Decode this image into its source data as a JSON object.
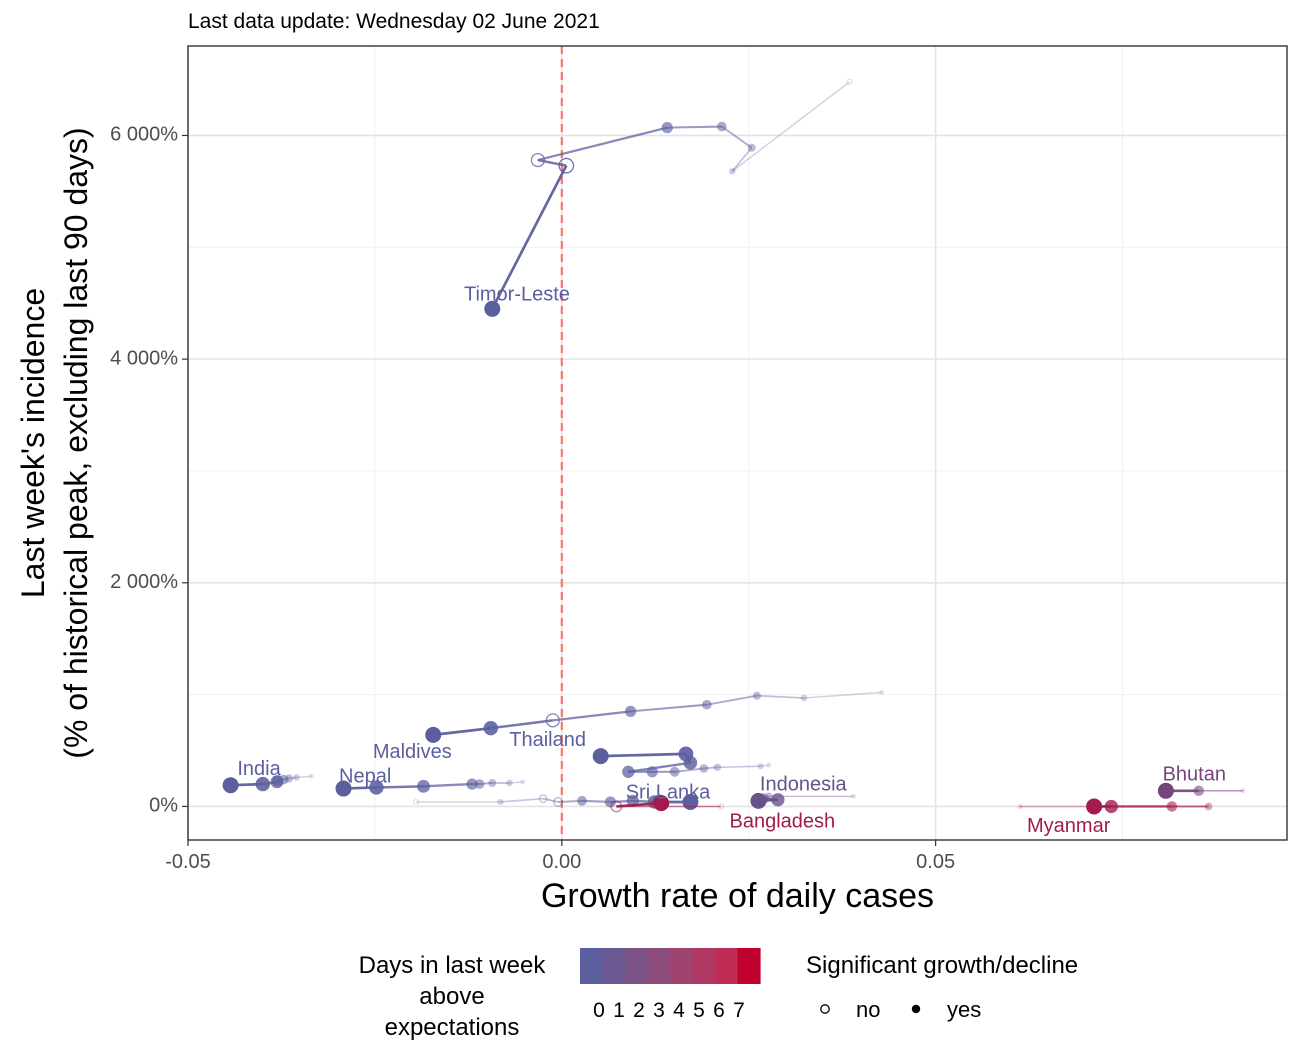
{
  "subtitle": "Last data update: Wednesday 02 June 2021",
  "chart_data": {
    "type": "scatter",
    "xlabel": "Growth rate of daily cases",
    "ylabel_lines": [
      "Last week's incidence",
      "(% of historical peak, excluding last 90 days)"
    ],
    "xlim": [
      -0.05,
      0.097
    ],
    "ylim": [
      -300,
      6800
    ],
    "x_ticks": [
      -0.05,
      0.0,
      0.05
    ],
    "x_tick_labels": [
      "-0.05",
      "0.00",
      "0.05"
    ],
    "y_ticks": [
      0,
      2000,
      4000,
      6000
    ],
    "y_tick_labels": [
      "0%",
      "2 000%",
      "4 000%",
      "6 000%"
    ],
    "minor_x": [
      -0.025,
      0.025,
      0.075
    ],
    "minor_y": [
      1000,
      3000,
      5000
    ],
    "grid": true,
    "reference_line": {
      "x": 0.0,
      "color": "#f8766d",
      "style": "dashed"
    },
    "color_low": "#5b5f9e",
    "color_high": "#c0002e",
    "series": [
      {
        "name": "Timor-Leste",
        "days": 0,
        "label": {
          "x": -0.006,
          "y": 4570
        },
        "points": [
          {
            "x": 0.0385,
            "y": 6480,
            "sig": false
          },
          {
            "x": 0.0228,
            "y": 5680,
            "sig": true
          },
          {
            "x": 0.0254,
            "y": 5890,
            "sig": true
          },
          {
            "x": 0.0214,
            "y": 6080,
            "sig": true
          },
          {
            "x": 0.0141,
            "y": 6070,
            "sig": true
          },
          {
            "x": -0.0032,
            "y": 5780,
            "sig": false
          },
          {
            "x": 0.0006,
            "y": 5730,
            "sig": false
          },
          {
            "x": -0.0093,
            "y": 4450,
            "sig": true
          }
        ]
      },
      {
        "name": "Maldives",
        "days": 0,
        "label": {
          "x": -0.02,
          "y": 480
        },
        "points": [
          {
            "x": 0.0428,
            "y": 1020,
            "sig": true
          },
          {
            "x": 0.0324,
            "y": 970,
            "sig": true
          },
          {
            "x": 0.0261,
            "y": 990,
            "sig": true
          },
          {
            "x": 0.0194,
            "y": 910,
            "sig": true
          },
          {
            "x": 0.0092,
            "y": 850,
            "sig": true
          },
          {
            "x": -0.0012,
            "y": 770,
            "sig": false
          },
          {
            "x": -0.0095,
            "y": 700,
            "sig": true
          },
          {
            "x": -0.0172,
            "y": 640,
            "sig": true
          }
        ]
      },
      {
        "name": "Thailand",
        "days": 0,
        "label": {
          "x": -0.0019,
          "y": 590
        },
        "points": [
          {
            "x": 0.0277,
            "y": 370,
            "sig": true
          },
          {
            "x": 0.0266,
            "y": 360,
            "sig": true
          },
          {
            "x": 0.0208,
            "y": 350,
            "sig": true
          },
          {
            "x": 0.019,
            "y": 340,
            "sig": true
          },
          {
            "x": 0.0151,
            "y": 310,
            "sig": true
          },
          {
            "x": 0.0121,
            "y": 310,
            "sig": true
          },
          {
            "x": 0.0089,
            "y": 310,
            "sig": true
          },
          {
            "x": 0.0172,
            "y": 390,
            "sig": true
          },
          {
            "x": 0.0166,
            "y": 470,
            "sig": true
          },
          {
            "x": 0.0052,
            "y": 450,
            "sig": true
          }
        ]
      },
      {
        "name": "India",
        "days": 0,
        "label": {
          "x": -0.0405,
          "y": 330
        },
        "points": [
          {
            "x": -0.0335,
            "y": 270,
            "sig": true
          },
          {
            "x": -0.0355,
            "y": 260,
            "sig": true
          },
          {
            "x": -0.0365,
            "y": 250,
            "sig": true
          },
          {
            "x": -0.0372,
            "y": 240,
            "sig": true
          },
          {
            "x": -0.038,
            "y": 230,
            "sig": true
          },
          {
            "x": -0.0381,
            "y": 220,
            "sig": true
          },
          {
            "x": -0.04,
            "y": 200,
            "sig": true
          },
          {
            "x": -0.0443,
            "y": 190,
            "sig": true
          }
        ]
      },
      {
        "name": "Nepal",
        "days": 0,
        "label": {
          "x": -0.0263,
          "y": 260
        },
        "points": [
          {
            "x": -0.0052,
            "y": 220,
            "sig": true
          },
          {
            "x": -0.007,
            "y": 210,
            "sig": true
          },
          {
            "x": -0.0093,
            "y": 210,
            "sig": true
          },
          {
            "x": -0.011,
            "y": 200,
            "sig": true
          },
          {
            "x": -0.012,
            "y": 200,
            "sig": true
          },
          {
            "x": -0.0185,
            "y": 180,
            "sig": true
          },
          {
            "x": -0.0248,
            "y": 170,
            "sig": true
          },
          {
            "x": -0.0292,
            "y": 160,
            "sig": true
          }
        ]
      },
      {
        "name": "Sri Lanka",
        "days": 0,
        "label": {
          "x": 0.0142,
          "y": 120
        },
        "points": [
          {
            "x": -0.0195,
            "y": 40,
            "sig": false
          },
          {
            "x": -0.0082,
            "y": 40,
            "sig": true
          },
          {
            "x": -0.0025,
            "y": 70,
            "sig": false
          },
          {
            "x": -0.0005,
            "y": 40,
            "sig": false
          },
          {
            "x": 0.0027,
            "y": 50,
            "sig": true
          },
          {
            "x": 0.0065,
            "y": 40,
            "sig": true
          },
          {
            "x": 0.0095,
            "y": 50,
            "sig": true
          },
          {
            "x": 0.0124,
            "y": 40,
            "sig": true
          },
          {
            "x": 0.0131,
            "y": 40,
            "sig": true
          },
          {
            "x": 0.0172,
            "y": 40,
            "sig": true
          }
        ]
      },
      {
        "name": "Indonesia",
        "days": 1,
        "label": {
          "x": 0.0323,
          "y": 190
        },
        "points": [
          {
            "x": 0.039,
            "y": 90,
            "sig": true
          },
          {
            "x": 0.0277,
            "y": 90,
            "sig": true
          },
          {
            "x": 0.027,
            "y": 70,
            "sig": true
          },
          {
            "x": 0.0289,
            "y": 60,
            "sig": true
          },
          {
            "x": 0.0263,
            "y": 50,
            "sig": true
          }
        ]
      },
      {
        "name": "Bangladesh",
        "days": 5,
        "label": {
          "x": 0.0295,
          "y": -140
        },
        "points": [
          {
            "x": 0.0213,
            "y": 0,
            "sig": false
          },
          {
            "x": 0.0073,
            "y": 0,
            "sig": false
          },
          {
            "x": 0.0133,
            "y": 30,
            "sig": true
          }
        ]
      },
      {
        "name": "Bhutan",
        "days": 2,
        "label": {
          "x": 0.0846,
          "y": 280
        },
        "points": [
          {
            "x": 0.0911,
            "y": 140,
            "sig": true
          },
          {
            "x": 0.0852,
            "y": 140,
            "sig": true
          },
          {
            "x": 0.0808,
            "y": 140,
            "sig": true
          }
        ]
      },
      {
        "name": "Myanmar",
        "days": 5,
        "label": {
          "x": 0.0678,
          "y": -180
        },
        "points": [
          {
            "x": 0.0613,
            "y": 0,
            "sig": true
          },
          {
            "x": 0.0865,
            "y": 0,
            "sig": true
          },
          {
            "x": 0.0816,
            "y": 0,
            "sig": true
          },
          {
            "x": 0.0735,
            "y": 0,
            "sig": true
          },
          {
            "x": 0.0712,
            "y": 0,
            "sig": true
          }
        ]
      }
    ]
  },
  "legend": {
    "color_title_lines": [
      "Days in last week",
      "above",
      "expectations"
    ],
    "color_labels": [
      "0",
      "1",
      "2",
      "3",
      "4",
      "5",
      "6",
      "7"
    ],
    "color_steps": [
      "#5b5f9e",
      "#6b5a93",
      "#7c5488",
      "#8d4d7c",
      "#9e4370",
      "#ae3863",
      "#be2b55",
      "#c0002e"
    ],
    "shape_title": "Significant growth/decline",
    "shape_items": [
      {
        "label": "no",
        "filled": false
      },
      {
        "label": "yes",
        "filled": true
      }
    ]
  }
}
